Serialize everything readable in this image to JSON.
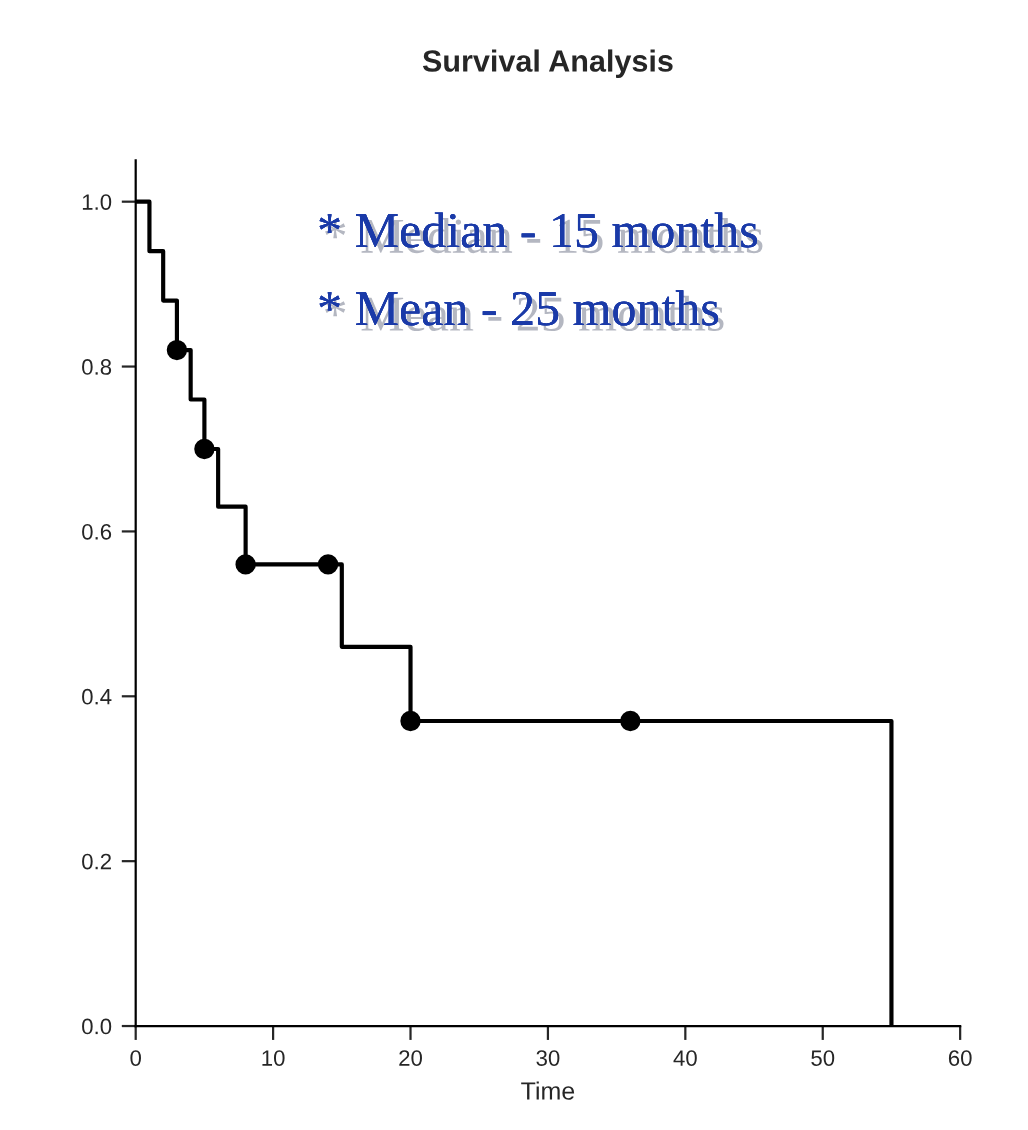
{
  "chart_data": {
    "type": "step",
    "title": "Survival Analysis",
    "xlabel": "Time",
    "series": [
      {
        "color": "#000000",
        "marker": "none",
        "x": [
          0,
          1,
          2,
          3,
          4,
          5,
          6,
          8,
          15,
          20,
          55
        ],
        "values": [
          1.0,
          0.94,
          0.88,
          0.82,
          0.76,
          0.7,
          0.63,
          0.56,
          0.46,
          0.37,
          0.0
        ]
      },
      {
        "type": "scatter",
        "color": "#000000",
        "marker": "circle",
        "x": [
          3,
          5,
          8,
          14,
          20,
          36
        ],
        "values": [
          0.82,
          0.7,
          0.56,
          0.56,
          0.37,
          0.37
        ]
      }
    ],
    "annotations": [
      "* Median - 15 months",
      "* Mean - 25 months"
    ],
    "xlim": [
      0,
      60
    ],
    "xticks": [
      0,
      10,
      20,
      30,
      40,
      50,
      60
    ],
    "ylim": [
      0,
      1.05
    ],
    "yticks": [
      {
        "value": 0,
        "label": "0.0"
      },
      {
        "value": 0.2,
        "label": "0.2"
      },
      {
        "value": 0.4,
        "label": "0.4"
      },
      {
        "value": 0.6,
        "label": "0.6"
      },
      {
        "value": 0.8,
        "label": "0.8"
      },
      {
        "value": 1.0,
        "label": "1.0"
      }
    ],
    "grid": false,
    "legend": false
  }
}
